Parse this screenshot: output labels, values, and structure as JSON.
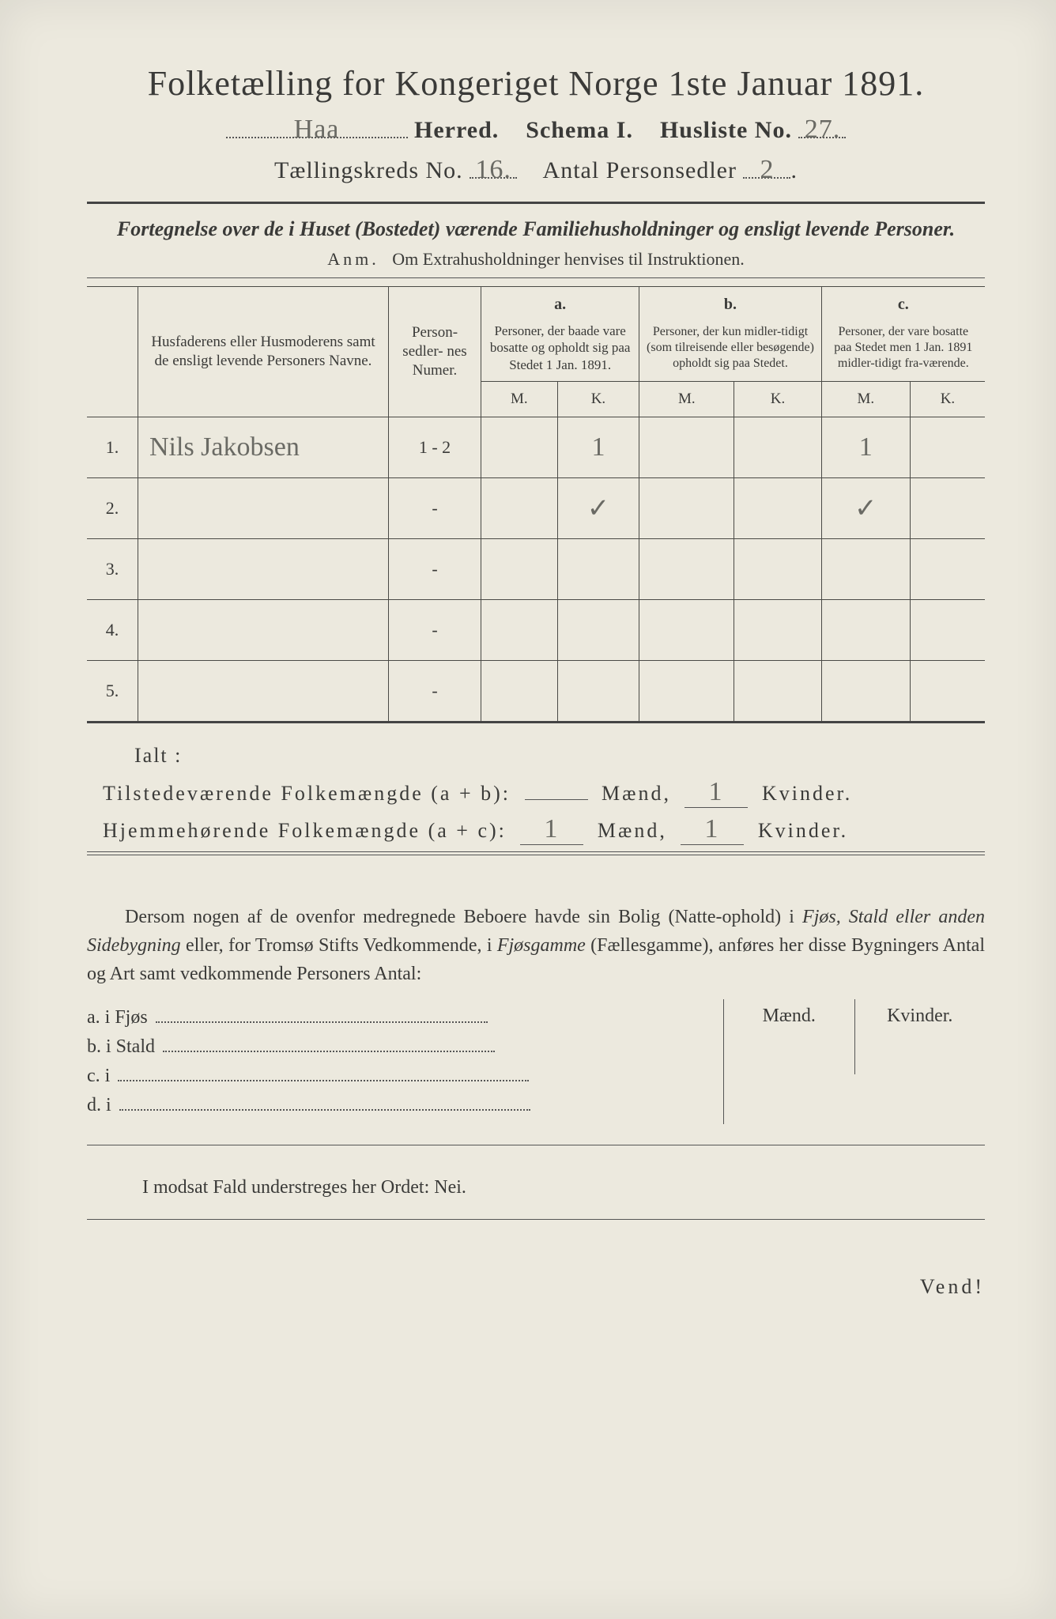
{
  "title": "Folketælling for Kongeriget Norge 1ste Januar 1891.",
  "header": {
    "herred_handwritten": "Haa",
    "herred_label": "Herred.",
    "schema_label": "Schema I.",
    "husliste_label": "Husliste No.",
    "husliste_no_handwritten": "27.",
    "tkreds_label": "Tællingskreds No.",
    "tkreds_no_handwritten": "16.",
    "antal_label": "Antal Personsedler",
    "antal_handwritten": "2"
  },
  "subtitle": "Fortegnelse over de i Huset (Bostedet) værende Familiehusholdninger og ensligt levende Personer.",
  "anm_label": "Anm.",
  "anm_text": "Om Extrahusholdninger henvises til Instruktionen.",
  "columns": {
    "names": "Husfaderens eller Husmoderens samt de ensligt levende Personers Navne.",
    "personsedler": "Person-\nsedler-\nnes\nNumer.",
    "a_label": "a.",
    "a_text": "Personer, der baade vare bosatte og opholdt sig paa Stedet 1 Jan. 1891.",
    "b_label": "b.",
    "b_text": "Personer, der kun midler-tidigt (som tilreisende eller besøgende) opholdt sig paa Stedet.",
    "c_label": "c.",
    "c_text": "Personer, der vare bosatte paa Stedet men 1 Jan. 1891 midler-tidigt fra-værende.",
    "m": "M.",
    "k": "K."
  },
  "rows": [
    {
      "n": "1.",
      "name_hw": "Nils Jakobsen",
      "pers": "1 - 2",
      "aM": "",
      "aK": "1",
      "bM": "",
      "bK": "",
      "cM": "1",
      "cK": ""
    },
    {
      "n": "2.",
      "name_hw": "",
      "pers": "-",
      "aM": "",
      "aK": "✓",
      "bM": "",
      "bK": "",
      "cM": "✓",
      "cK": ""
    },
    {
      "n": "3.",
      "name_hw": "",
      "pers": "-",
      "aM": "",
      "aK": "",
      "bM": "",
      "bK": "",
      "cM": "",
      "cK": ""
    },
    {
      "n": "4.",
      "name_hw": "",
      "pers": "-",
      "aM": "",
      "aK": "",
      "bM": "",
      "bK": "",
      "cM": "",
      "cK": ""
    },
    {
      "n": "5.",
      "name_hw": "",
      "pers": "-",
      "aM": "",
      "aK": "",
      "bM": "",
      "bK": "",
      "cM": "",
      "cK": ""
    }
  ],
  "ialt": "Ialt :",
  "totals": {
    "line1_label": "Tilstedeværende Folkemængde (a + b):",
    "line1_m": "",
    "line1_k": "1",
    "line2_label": "Hjemmehørende Folkemængde (a + c):",
    "line2_m": "1",
    "line2_k": "1",
    "maend": "Mænd,",
    "kvinder": "Kvinder."
  },
  "paragraph": {
    "p1a": "Dersom nogen af de ovenfor medregnede Beboere havde sin Bolig (Natte-ophold) i ",
    "p1b": "Fjøs, Stald eller anden Sidebygning",
    "p1c": " eller, for Tromsø Stifts Vedkommende, i ",
    "p1d": "Fjøsgamme",
    "p1e": " (Fællesgamme), anføres her disse Bygningers Antal og Art samt vedkommende Personers Antal:"
  },
  "lower": {
    "maend": "Mænd.",
    "kvinder": "Kvinder.",
    "a": "a.  i      Fjøs",
    "b": "b.  i      Stald",
    "c": "c.  i",
    "d": "d.  i"
  },
  "footer": "I modsat Fald understreges her Ordet: Nei.",
  "vend": "Vend!",
  "style": {
    "page_bg": "#ece9de",
    "text_color": "#3a3a38",
    "handwriting_color": "#6a6a64",
    "border_color": "#4a4a46",
    "title_fontsize": 44,
    "body_fontsize": 24,
    "table_fontsize": 20
  }
}
